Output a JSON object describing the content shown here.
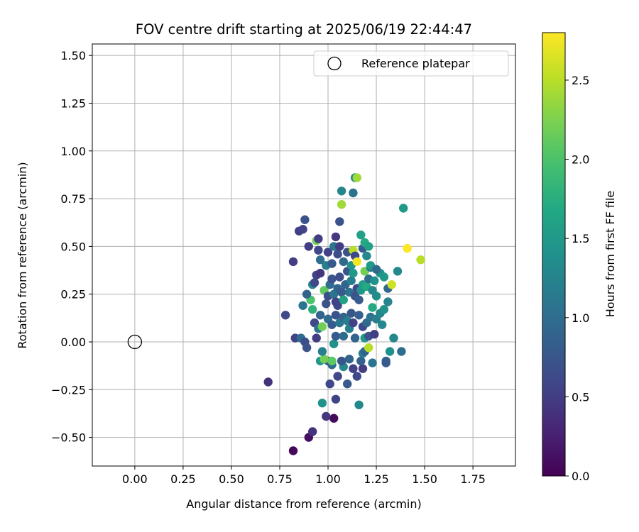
{
  "chart_data": {
    "type": "scatter",
    "title": "FOV centre drift starting at 2025/06/19 22:44:47",
    "xlabel": "Angular distance from reference (arcmin)",
    "ylabel": "Rotation from reference (arcmin)",
    "xlim": [
      -0.22,
      1.97
    ],
    "ylim": [
      -0.65,
      1.56
    ],
    "x_ticks": [
      0.0,
      0.25,
      0.5,
      0.75,
      1.0,
      1.25,
      1.5,
      1.75
    ],
    "x_tick_labels": [
      "0.00",
      "0.25",
      "0.50",
      "0.75",
      "1.00",
      "1.25",
      "1.50",
      "1.75"
    ],
    "y_ticks": [
      -0.5,
      -0.25,
      0.0,
      0.25,
      0.5,
      0.75,
      1.0,
      1.25,
      1.5
    ],
    "y_tick_labels": [
      "−0.50",
      "−0.25",
      "0.00",
      "0.25",
      "0.50",
      "0.75",
      "1.00",
      "1.25",
      "1.50"
    ],
    "grid": true,
    "legend": {
      "placement": "upper-right",
      "entries": [
        {
          "label": "Reference platepar",
          "marker": "hollow-circle",
          "x": 0.0,
          "y": 0.0
        }
      ]
    },
    "colorbar": {
      "label": "Hours from first FF file",
      "colormap": "viridis",
      "range": [
        0.0,
        2.8
      ],
      "ticks": [
        0.0,
        0.5,
        1.0,
        1.5,
        2.0,
        2.5
      ],
      "tick_labels": [
        "0.0",
        "0.5",
        "1.0",
        "1.5",
        "2.0",
        "2.5"
      ]
    },
    "series": [
      {
        "points": [
          {
            "x": 0.82,
            "y": -0.57,
            "c": 0.05
          },
          {
            "x": 1.03,
            "y": -0.4,
            "c": 0.08
          },
          {
            "x": 0.9,
            "y": -0.5,
            "c": 0.12
          },
          {
            "x": 0.92,
            "y": -0.47,
            "c": 0.4
          },
          {
            "x": 0.99,
            "y": -0.39,
            "c": 0.45
          },
          {
            "x": 0.69,
            "y": -0.21,
            "c": 0.4
          },
          {
            "x": 1.04,
            "y": -0.3,
            "c": 0.55
          },
          {
            "x": 0.97,
            "y": -0.32,
            "c": 1.4
          },
          {
            "x": 1.16,
            "y": -0.33,
            "c": 1.3
          },
          {
            "x": 1.01,
            "y": -0.22,
            "c": 0.6
          },
          {
            "x": 1.1,
            "y": -0.22,
            "c": 0.8
          },
          {
            "x": 1.05,
            "y": -0.18,
            "c": 0.6
          },
          {
            "x": 1.15,
            "y": -0.18,
            "c": 0.6
          },
          {
            "x": 1.13,
            "y": -0.14,
            "c": 0.55
          },
          {
            "x": 1.18,
            "y": -0.14,
            "c": 0.5
          },
          {
            "x": 1.08,
            "y": -0.13,
            "c": 1.3
          },
          {
            "x": 1.02,
            "y": -0.12,
            "c": 1.0
          },
          {
            "x": 1.0,
            "y": -0.1,
            "c": 0.7
          },
          {
            "x": 1.07,
            "y": -0.1,
            "c": 0.75
          },
          {
            "x": 1.11,
            "y": -0.09,
            "c": 0.9
          },
          {
            "x": 1.17,
            "y": -0.1,
            "c": 0.85
          },
          {
            "x": 1.23,
            "y": -0.11,
            "c": 1.1
          },
          {
            "x": 1.3,
            "y": -0.1,
            "c": 0.9
          },
          {
            "x": 1.3,
            "y": -0.11,
            "c": 0.8
          },
          {
            "x": 0.96,
            "y": -0.1,
            "c": 1.5
          },
          {
            "x": 0.98,
            "y": -0.09,
            "c": 2.2
          },
          {
            "x": 1.02,
            "y": -0.1,
            "c": 2.1
          },
          {
            "x": 1.18,
            "y": -0.06,
            "c": 1.2
          },
          {
            "x": 1.19,
            "y": -0.05,
            "c": 0.9
          },
          {
            "x": 1.21,
            "y": -0.03,
            "c": 2.5
          },
          {
            "x": 1.32,
            "y": -0.05,
            "c": 1.4
          },
          {
            "x": 1.38,
            "y": -0.05,
            "c": 1.0
          },
          {
            "x": 0.97,
            "y": -0.05,
            "c": 1.2
          },
          {
            "x": 0.83,
            "y": 0.02,
            "c": 0.55
          },
          {
            "x": 0.86,
            "y": 0.02,
            "c": 1.0
          },
          {
            "x": 0.88,
            "y": 0.0,
            "c": 0.65
          },
          {
            "x": 0.89,
            "y": -0.03,
            "c": 0.7
          },
          {
            "x": 0.94,
            "y": 0.02,
            "c": 0.5
          },
          {
            "x": 1.03,
            "y": -0.01,
            "c": 1.4
          },
          {
            "x": 1.04,
            "y": 0.03,
            "c": 0.8
          },
          {
            "x": 1.08,
            "y": 0.03,
            "c": 1.0
          },
          {
            "x": 1.11,
            "y": 0.07,
            "c": 1.2
          },
          {
            "x": 1.14,
            "y": 0.02,
            "c": 0.9
          },
          {
            "x": 1.19,
            "y": 0.02,
            "c": 1.5
          },
          {
            "x": 1.21,
            "y": 0.03,
            "c": 0.7
          },
          {
            "x": 1.24,
            "y": 0.04,
            "c": 0.5
          },
          {
            "x": 1.28,
            "y": 0.09,
            "c": 1.3
          },
          {
            "x": 1.34,
            "y": 0.02,
            "c": 1.3
          },
          {
            "x": 0.78,
            "y": 0.14,
            "c": 0.6
          },
          {
            "x": 0.87,
            "y": 0.19,
            "c": 1.1
          },
          {
            "x": 0.92,
            "y": 0.17,
            "c": 1.8
          },
          {
            "x": 0.93,
            "y": 0.1,
            "c": 0.6
          },
          {
            "x": 0.95,
            "y": 0.07,
            "c": 1.1
          },
          {
            "x": 0.97,
            "y": 0.08,
            "c": 2.2
          },
          {
            "x": 0.96,
            "y": 0.14,
            "c": 0.9
          },
          {
            "x": 1.0,
            "y": 0.12,
            "c": 1.0
          },
          {
            "x": 1.02,
            "y": 0.09,
            "c": 0.8
          },
          {
            "x": 1.04,
            "y": 0.14,
            "c": 0.7
          },
          {
            "x": 1.05,
            "y": 0.19,
            "c": 0.6
          },
          {
            "x": 1.06,
            "y": 0.1,
            "c": 1.1
          },
          {
            "x": 1.08,
            "y": 0.13,
            "c": 0.9
          },
          {
            "x": 1.1,
            "y": 0.11,
            "c": 1.2
          },
          {
            "x": 1.12,
            "y": 0.15,
            "c": 0.75
          },
          {
            "x": 1.13,
            "y": 0.1,
            "c": 0.55
          },
          {
            "x": 1.16,
            "y": 0.14,
            "c": 0.85
          },
          {
            "x": 1.18,
            "y": 0.08,
            "c": 0.6
          },
          {
            "x": 1.2,
            "y": 0.1,
            "c": 0.95
          },
          {
            "x": 1.22,
            "y": 0.13,
            "c": 1.05
          },
          {
            "x": 1.23,
            "y": 0.18,
            "c": 1.7
          },
          {
            "x": 1.25,
            "y": 0.12,
            "c": 1.2
          },
          {
            "x": 1.27,
            "y": 0.15,
            "c": 1.25
          },
          {
            "x": 1.29,
            "y": 0.17,
            "c": 1.4
          },
          {
            "x": 1.31,
            "y": 0.21,
            "c": 1.25
          },
          {
            "x": 1.31,
            "y": 0.28,
            "c": 0.95
          },
          {
            "x": 0.91,
            "y": 0.22,
            "c": 2.0
          },
          {
            "x": 0.89,
            "y": 0.25,
            "c": 0.9
          },
          {
            "x": 0.92,
            "y": 0.3,
            "c": 1.3
          },
          {
            "x": 0.93,
            "y": 0.31,
            "c": 0.6
          },
          {
            "x": 0.94,
            "y": 0.35,
            "c": 0.55
          },
          {
            "x": 0.96,
            "y": 0.36,
            "c": 0.45
          },
          {
            "x": 0.98,
            "y": 0.27,
            "c": 2.1
          },
          {
            "x": 0.99,
            "y": 0.2,
            "c": 0.7
          },
          {
            "x": 1.0,
            "y": 0.24,
            "c": 0.65
          },
          {
            "x": 1.01,
            "y": 0.3,
            "c": 1.0
          },
          {
            "x": 1.02,
            "y": 0.33,
            "c": 0.7
          },
          {
            "x": 1.03,
            "y": 0.25,
            "c": 1.1
          },
          {
            "x": 1.04,
            "y": 0.21,
            "c": 0.55
          },
          {
            "x": 1.05,
            "y": 0.28,
            "c": 0.9
          },
          {
            "x": 1.06,
            "y": 0.34,
            "c": 0.65
          },
          {
            "x": 1.07,
            "y": 0.26,
            "c": 0.8
          },
          {
            "x": 1.08,
            "y": 0.22,
            "c": 1.6
          },
          {
            "x": 1.09,
            "y": 0.3,
            "c": 0.9
          },
          {
            "x": 1.1,
            "y": 0.37,
            "c": 0.75
          },
          {
            "x": 1.11,
            "y": 0.26,
            "c": 1.05
          },
          {
            "x": 1.12,
            "y": 0.32,
            "c": 1.2
          },
          {
            "x": 1.13,
            "y": 0.36,
            "c": 1.5
          },
          {
            "x": 1.14,
            "y": 0.24,
            "c": 0.7
          },
          {
            "x": 1.15,
            "y": 0.28,
            "c": 0.6
          },
          {
            "x": 1.16,
            "y": 0.22,
            "c": 0.8
          },
          {
            "x": 1.17,
            "y": 0.27,
            "c": 1.45
          },
          {
            "x": 1.18,
            "y": 0.3,
            "c": 1.55
          },
          {
            "x": 1.19,
            "y": 0.37,
            "c": 2.2
          },
          {
            "x": 1.2,
            "y": 0.29,
            "c": 1.7
          },
          {
            "x": 1.21,
            "y": 0.33,
            "c": 1.0
          },
          {
            "x": 1.22,
            "y": 0.39,
            "c": 1.1
          },
          {
            "x": 1.23,
            "y": 0.27,
            "c": 1.3
          },
          {
            "x": 1.24,
            "y": 0.32,
            "c": 1.4
          },
          {
            "x": 1.25,
            "y": 0.24,
            "c": 1.35
          },
          {
            "x": 1.27,
            "y": 0.36,
            "c": 1.4
          },
          {
            "x": 1.29,
            "y": 0.34,
            "c": 1.5
          },
          {
            "x": 1.33,
            "y": 0.3,
            "c": 2.6
          },
          {
            "x": 1.36,
            "y": 0.37,
            "c": 1.3
          },
          {
            "x": 0.82,
            "y": 0.42,
            "c": 0.5
          },
          {
            "x": 0.85,
            "y": 0.58,
            "c": 0.5
          },
          {
            "x": 0.87,
            "y": 0.59,
            "c": 0.55
          },
          {
            "x": 0.88,
            "y": 0.64,
            "c": 0.7
          },
          {
            "x": 0.9,
            "y": 0.5,
            "c": 0.5
          },
          {
            "x": 0.94,
            "y": 0.53,
            "c": 2.2
          },
          {
            "x": 0.95,
            "y": 0.54,
            "c": 0.5
          },
          {
            "x": 0.95,
            "y": 0.48,
            "c": 0.6
          },
          {
            "x": 0.96,
            "y": 0.43,
            "c": 1.0
          },
          {
            "x": 0.99,
            "y": 0.4,
            "c": 1.2
          },
          {
            "x": 1.0,
            "y": 0.47,
            "c": 0.55
          },
          {
            "x": 1.02,
            "y": 0.41,
            "c": 0.8
          },
          {
            "x": 1.03,
            "y": 0.5,
            "c": 1.1
          },
          {
            "x": 1.04,
            "y": 0.55,
            "c": 0.45
          },
          {
            "x": 1.05,
            "y": 0.46,
            "c": 0.65
          },
          {
            "x": 1.06,
            "y": 0.5,
            "c": 0.5
          },
          {
            "x": 1.06,
            "y": 0.63,
            "c": 0.7
          },
          {
            "x": 1.07,
            "y": 0.72,
            "c": 2.4
          },
          {
            "x": 1.08,
            "y": 0.42,
            "c": 0.95
          },
          {
            "x": 1.1,
            "y": 0.47,
            "c": 0.7
          },
          {
            "x": 1.12,
            "y": 0.4,
            "c": 1.4
          },
          {
            "x": 1.13,
            "y": 0.48,
            "c": 2.5
          },
          {
            "x": 1.14,
            "y": 0.45,
            "c": 0.6
          },
          {
            "x": 1.15,
            "y": 0.42,
            "c": 2.75
          },
          {
            "x": 1.17,
            "y": 0.56,
            "c": 1.6
          },
          {
            "x": 1.18,
            "y": 0.49,
            "c": 0.8
          },
          {
            "x": 1.19,
            "y": 0.52,
            "c": 1.7
          },
          {
            "x": 1.2,
            "y": 0.45,
            "c": 1.3
          },
          {
            "x": 1.21,
            "y": 0.5,
            "c": 1.6
          },
          {
            "x": 1.22,
            "y": 0.4,
            "c": 1.5
          },
          {
            "x": 1.25,
            "y": 0.38,
            "c": 0.95
          },
          {
            "x": 1.07,
            "y": 0.79,
            "c": 1.25
          },
          {
            "x": 1.13,
            "y": 0.78,
            "c": 1.05
          },
          {
            "x": 1.14,
            "y": 0.86,
            "c": 1.4
          },
          {
            "x": 1.15,
            "y": 0.86,
            "c": 2.4
          },
          {
            "x": 1.39,
            "y": 0.7,
            "c": 1.5
          },
          {
            "x": 1.41,
            "y": 0.49,
            "c": 2.8
          },
          {
            "x": 1.48,
            "y": 0.43,
            "c": 2.5
          }
        ]
      }
    ]
  }
}
